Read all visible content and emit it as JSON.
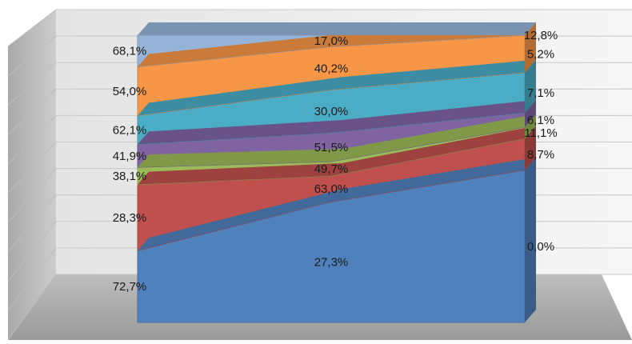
{
  "chart_data": {
    "type": "area",
    "stacking": "percent-100",
    "view": "3d",
    "categories": [
      "",
      "",
      ""
    ],
    "ylim": [
      0,
      1
    ],
    "grid": true,
    "legend": "none",
    "series": [
      {
        "color": "#4f81bd",
        "values": [
          0.25,
          0.42,
          0.53
        ],
        "labels": [
          "72,7%",
          "27,3%",
          "0,0%"
        ]
      },
      {
        "color": "#c0504d",
        "values": [
          0.23,
          0.09,
          0.11
        ],
        "labels": [
          "28,3%",
          "63,0%",
          "8,7%"
        ]
      },
      {
        "color": "#9bbb59",
        "values": [
          0.06,
          0.05,
          0.04
        ],
        "labels": [
          "38,1%",
          "49,7%",
          "11,1%"
        ]
      },
      {
        "color": "#8064a2",
        "values": [
          0.08,
          0.1,
          0.05
        ],
        "labels": [
          "41,9%",
          "51,5%",
          "6,1%"
        ]
      },
      {
        "color": "#4bacc6",
        "values": [
          0.1,
          0.15,
          0.14
        ],
        "labels": [
          "62,1%",
          "30,0%",
          "7,1%"
        ]
      },
      {
        "color": "#f79646",
        "values": [
          0.17,
          0.15,
          0.13
        ],
        "labels": [
          "54,0%",
          "40,2%",
          "5,2%"
        ]
      },
      {
        "color": "#95b3d7",
        "values": [
          0.11,
          0.04,
          0.0
        ],
        "labels": [
          "68,1%",
          "17,0%",
          "12,8%"
        ]
      }
    ]
  }
}
